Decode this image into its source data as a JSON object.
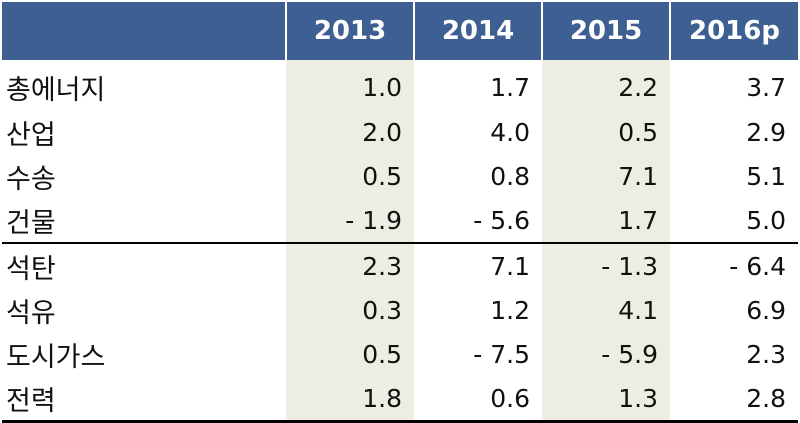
{
  "table": {
    "columns": [
      "2013",
      "2014",
      "2015",
      "2016p"
    ],
    "rows": [
      {
        "label": "총에너지",
        "values": [
          "1.0",
          "1.7",
          "2.2",
          "3.7"
        ]
      },
      {
        "label": "산업",
        "values": [
          "2.0",
          "4.0",
          "0.5",
          "2.9"
        ]
      },
      {
        "label": "수송",
        "values": [
          "0.5",
          "0.8",
          "7.1",
          "5.1"
        ]
      },
      {
        "label": "건물",
        "values": [
          "- 1.9",
          "- 5.6",
          "1.7",
          "5.0"
        ]
      },
      {
        "label": "석탄",
        "values": [
          "2.3",
          "7.1",
          "- 1.3",
          "- 6.4"
        ]
      },
      {
        "label": "석유",
        "values": [
          "0.3",
          "1.2",
          "4.1",
          "6.9"
        ]
      },
      {
        "label": "도시가스",
        "values": [
          "0.5",
          "- 7.5",
          "- 5.9",
          "2.3"
        ]
      },
      {
        "label": "전력",
        "values": [
          "1.8",
          "0.6",
          "1.3",
          "2.8"
        ]
      }
    ]
  },
  "colors": {
    "header_bg": "#3d5f92",
    "header_text": "#ffffff",
    "shaded_column_bg": "#eeede1",
    "text": "#111111",
    "rule": "#000000"
  }
}
